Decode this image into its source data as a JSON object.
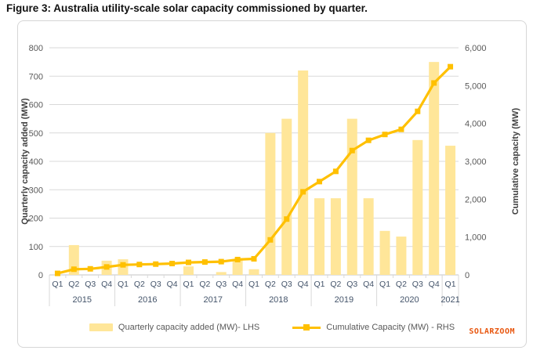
{
  "page": {
    "title": "Figure 3: Australia utility-scale solar capacity commissioned by quarter.",
    "watermark": "SOLARZOOM"
  },
  "legend": [
    {
      "label": "Quarterly capacity added (MW)- LHS",
      "type": "bar"
    },
    {
      "label": "Cumulative Capacity (MW) - RHS",
      "type": "line"
    }
  ],
  "colors": {
    "bar": "#FFE699",
    "line": "#FFC000",
    "gridline": "#D9D9D9",
    "axis_line": "#C6C6C6",
    "separator": "#D9D9D9",
    "left_tick_text": "#595959",
    "right_tick_text": "#595959",
    "x_tick_text": "#44546A",
    "axis_title_text": "#3F3F3F",
    "watermark": "#E8560E"
  },
  "chart_data": {
    "type": "combo-bar-line",
    "categories_quarters": [
      "Q1",
      "Q2",
      "Q3",
      "Q4",
      "Q1",
      "Q2",
      "Q3",
      "Q4",
      "Q1",
      "Q2",
      "Q3",
      "Q4",
      "Q1",
      "Q2",
      "Q3",
      "Q4",
      "Q1",
      "Q2",
      "Q3",
      "Q4",
      "Q1",
      "Q2",
      "Q3",
      "Q4",
      "Q1"
    ],
    "year_groups": [
      {
        "year": "2015",
        "count": 4
      },
      {
        "year": "2016",
        "count": 4
      },
      {
        "year": "2017",
        "count": 4
      },
      {
        "year": "2018",
        "count": 4
      },
      {
        "year": "2019",
        "count": 4
      },
      {
        "year": "2020",
        "count": 4
      },
      {
        "year": "2021",
        "count": 1
      }
    ],
    "series": [
      {
        "name": "Quarterly capacity added (MW)- LHS",
        "type": "bar",
        "axis": "left",
        "values": [
          0,
          105,
          0,
          50,
          55,
          0,
          0,
          0,
          30,
          0,
          10,
          55,
          20,
          500,
          550,
          720,
          270,
          270,
          550,
          270,
          155,
          135,
          475,
          750,
          455
        ]
      },
      {
        "name": "Cumulative Capacity (MW) - RHS",
        "type": "line",
        "axis": "right",
        "values": [
          40,
          150,
          160,
          210,
          265,
          275,
          285,
          300,
          330,
          340,
          350,
          405,
          425,
          925,
          1475,
          2195,
          2465,
          2735,
          3285,
          3555,
          3710,
          3845,
          4320,
          5070,
          5500
        ]
      }
    ],
    "left_axis": {
      "title": "Quarterly capacity added (MW)",
      "min": 0,
      "max": 800,
      "step": 100,
      "tick_labels": [
        "0",
        "100",
        "200",
        "300",
        "400",
        "500",
        "600",
        "700",
        "800"
      ]
    },
    "right_axis": {
      "title": "Cumulative capacity (MW)",
      "min": 0,
      "max": 6000,
      "step": 1000,
      "tick_labels": [
        "0",
        "1,000",
        "2,000",
        "3,000",
        "4,000",
        "5,000",
        "6,000"
      ]
    },
    "grid": "horizontal",
    "legend_position": "bottom"
  }
}
